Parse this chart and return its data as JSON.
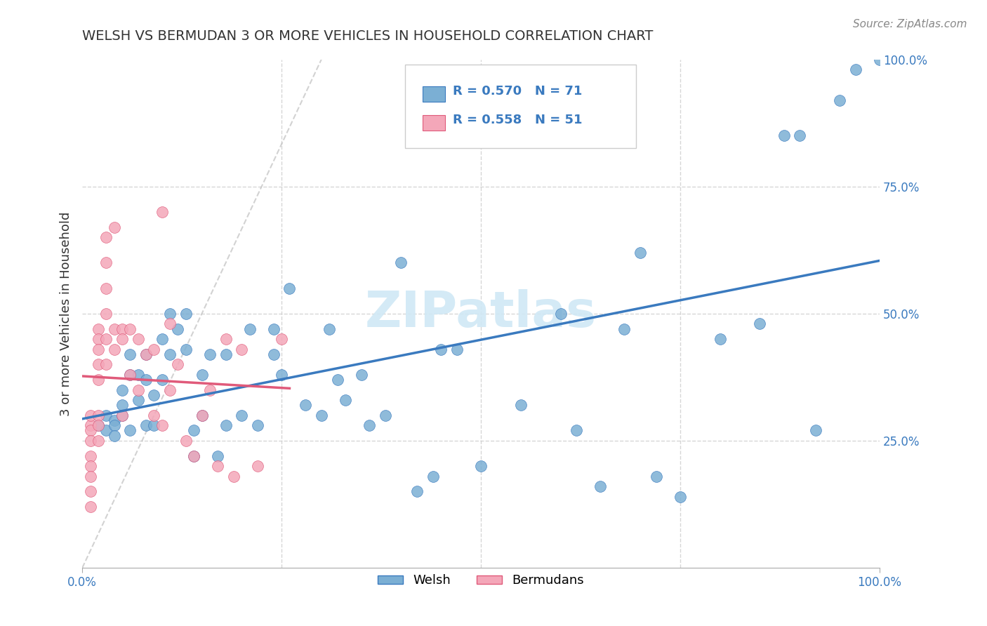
{
  "title": "WELSH VS BERMUDAN 3 OR MORE VEHICLES IN HOUSEHOLD CORRELATION CHART",
  "source": "Source: ZipAtlas.com",
  "ylabel_left": "3 or more Vehicles in Household",
  "x_min": 0.0,
  "x_max": 1.0,
  "y_min": 0.0,
  "y_max": 1.0,
  "welsh_R": 0.57,
  "welsh_N": 71,
  "bermudan_R": 0.558,
  "bermudan_N": 51,
  "welsh_color": "#7bafd4",
  "bermudan_color": "#f4a7b9",
  "welsh_line_color": "#3a7abf",
  "bermudan_line_color": "#e05a7a",
  "diagonal_color": "#c0c0c0",
  "grid_color": "#cccccc",
  "watermark_color": "#d0e8f5",
  "title_color": "#333333",
  "source_color": "#888888",
  "legend_text_color": "#3a7abf",
  "welsh_scatter_x": [
    0.02,
    0.03,
    0.03,
    0.04,
    0.04,
    0.04,
    0.05,
    0.05,
    0.05,
    0.06,
    0.06,
    0.06,
    0.07,
    0.07,
    0.08,
    0.08,
    0.08,
    0.09,
    0.09,
    0.1,
    0.1,
    0.11,
    0.11,
    0.12,
    0.13,
    0.13,
    0.14,
    0.14,
    0.15,
    0.15,
    0.16,
    0.17,
    0.18,
    0.18,
    0.2,
    0.21,
    0.22,
    0.24,
    0.24,
    0.25,
    0.26,
    0.28,
    0.3,
    0.31,
    0.32,
    0.33,
    0.35,
    0.36,
    0.38,
    0.4,
    0.42,
    0.44,
    0.45,
    0.47,
    0.5,
    0.55,
    0.6,
    0.62,
    0.65,
    0.68,
    0.7,
    0.72,
    0.75,
    0.8,
    0.85,
    0.88,
    0.9,
    0.92,
    0.95,
    0.97,
    1.0
  ],
  "welsh_scatter_y": [
    0.28,
    0.3,
    0.27,
    0.29,
    0.28,
    0.26,
    0.32,
    0.35,
    0.3,
    0.38,
    0.42,
    0.27,
    0.33,
    0.38,
    0.37,
    0.42,
    0.28,
    0.34,
    0.28,
    0.45,
    0.37,
    0.42,
    0.5,
    0.47,
    0.43,
    0.5,
    0.22,
    0.27,
    0.38,
    0.3,
    0.42,
    0.22,
    0.28,
    0.42,
    0.3,
    0.47,
    0.28,
    0.42,
    0.47,
    0.38,
    0.55,
    0.32,
    0.3,
    0.47,
    0.37,
    0.33,
    0.38,
    0.28,
    0.3,
    0.6,
    0.15,
    0.18,
    0.43,
    0.43,
    0.2,
    0.32,
    0.5,
    0.27,
    0.16,
    0.47,
    0.62,
    0.18,
    0.14,
    0.45,
    0.48,
    0.85,
    0.85,
    0.27,
    0.92,
    0.98,
    1.0
  ],
  "bermudan_scatter_x": [
    0.01,
    0.01,
    0.01,
    0.01,
    0.01,
    0.01,
    0.01,
    0.01,
    0.01,
    0.02,
    0.02,
    0.02,
    0.02,
    0.02,
    0.02,
    0.02,
    0.02,
    0.03,
    0.03,
    0.03,
    0.03,
    0.03,
    0.03,
    0.04,
    0.04,
    0.04,
    0.05,
    0.05,
    0.05,
    0.06,
    0.06,
    0.07,
    0.07,
    0.08,
    0.09,
    0.09,
    0.1,
    0.1,
    0.11,
    0.11,
    0.12,
    0.13,
    0.14,
    0.15,
    0.16,
    0.17,
    0.18,
    0.19,
    0.2,
    0.22,
    0.25
  ],
  "bermudan_scatter_y": [
    0.28,
    0.3,
    0.27,
    0.25,
    0.22,
    0.2,
    0.18,
    0.15,
    0.12,
    0.47,
    0.45,
    0.43,
    0.4,
    0.37,
    0.3,
    0.28,
    0.25,
    0.65,
    0.6,
    0.55,
    0.5,
    0.45,
    0.4,
    0.67,
    0.47,
    0.43,
    0.47,
    0.45,
    0.3,
    0.47,
    0.38,
    0.45,
    0.35,
    0.42,
    0.43,
    0.3,
    0.7,
    0.28,
    0.48,
    0.35,
    0.4,
    0.25,
    0.22,
    0.3,
    0.35,
    0.2,
    0.45,
    0.18,
    0.43,
    0.2,
    0.45
  ]
}
